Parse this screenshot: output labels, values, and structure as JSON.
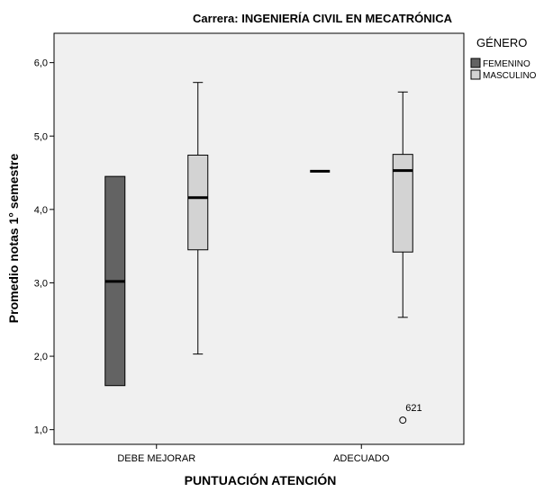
{
  "chart_data": {
    "type": "boxplot",
    "title": "Carrera: INGENIERÍA CIVIL EN MECATRÓNICA",
    "xlabel": "PUNTUACIÓN ATENCIÓN",
    "ylabel": "Promedio notas 1° semestre",
    "ylim": [
      0.8,
      6.4
    ],
    "yticks": [
      1.0,
      2.0,
      3.0,
      4.0,
      5.0,
      6.0
    ],
    "ytick_labels": [
      "1,0",
      "2,0",
      "3,0",
      "4,0",
      "5,0",
      "6,0"
    ],
    "categories": [
      "DEBE MEJORAR",
      "ADECUADO"
    ],
    "legend": {
      "title": "GÉNERO",
      "placement": "right",
      "entries": [
        "FEMENINO",
        "MASCULINO"
      ]
    },
    "colors": {
      "FEMENINO": "#636363",
      "MASCULINO": "#d3d3d3",
      "plot_background": "#f0f0f0",
      "border": "#000000"
    },
    "grid": false,
    "series": [
      {
        "name": "FEMENINO",
        "boxes": [
          {
            "category": "DEBE MEJORAR",
            "min": 1.6,
            "q1": 1.6,
            "median": 3.02,
            "q3": 4.45,
            "max": 4.45,
            "outliers": []
          },
          {
            "category": "ADECUADO",
            "min": 4.52,
            "q1": 4.52,
            "median": 4.52,
            "q3": 4.52,
            "max": 4.52,
            "outliers": []
          }
        ]
      },
      {
        "name": "MASCULINO",
        "boxes": [
          {
            "category": "DEBE MEJORAR",
            "min": 2.03,
            "q1": 3.45,
            "median": 4.16,
            "q3": 4.74,
            "max": 5.73,
            "outliers": []
          },
          {
            "category": "ADECUADO",
            "min": 2.53,
            "q1": 3.42,
            "median": 4.53,
            "q3": 4.75,
            "max": 5.6,
            "outliers": [
              {
                "value": 1.13,
                "label": "621"
              }
            ]
          }
        ]
      }
    ]
  }
}
